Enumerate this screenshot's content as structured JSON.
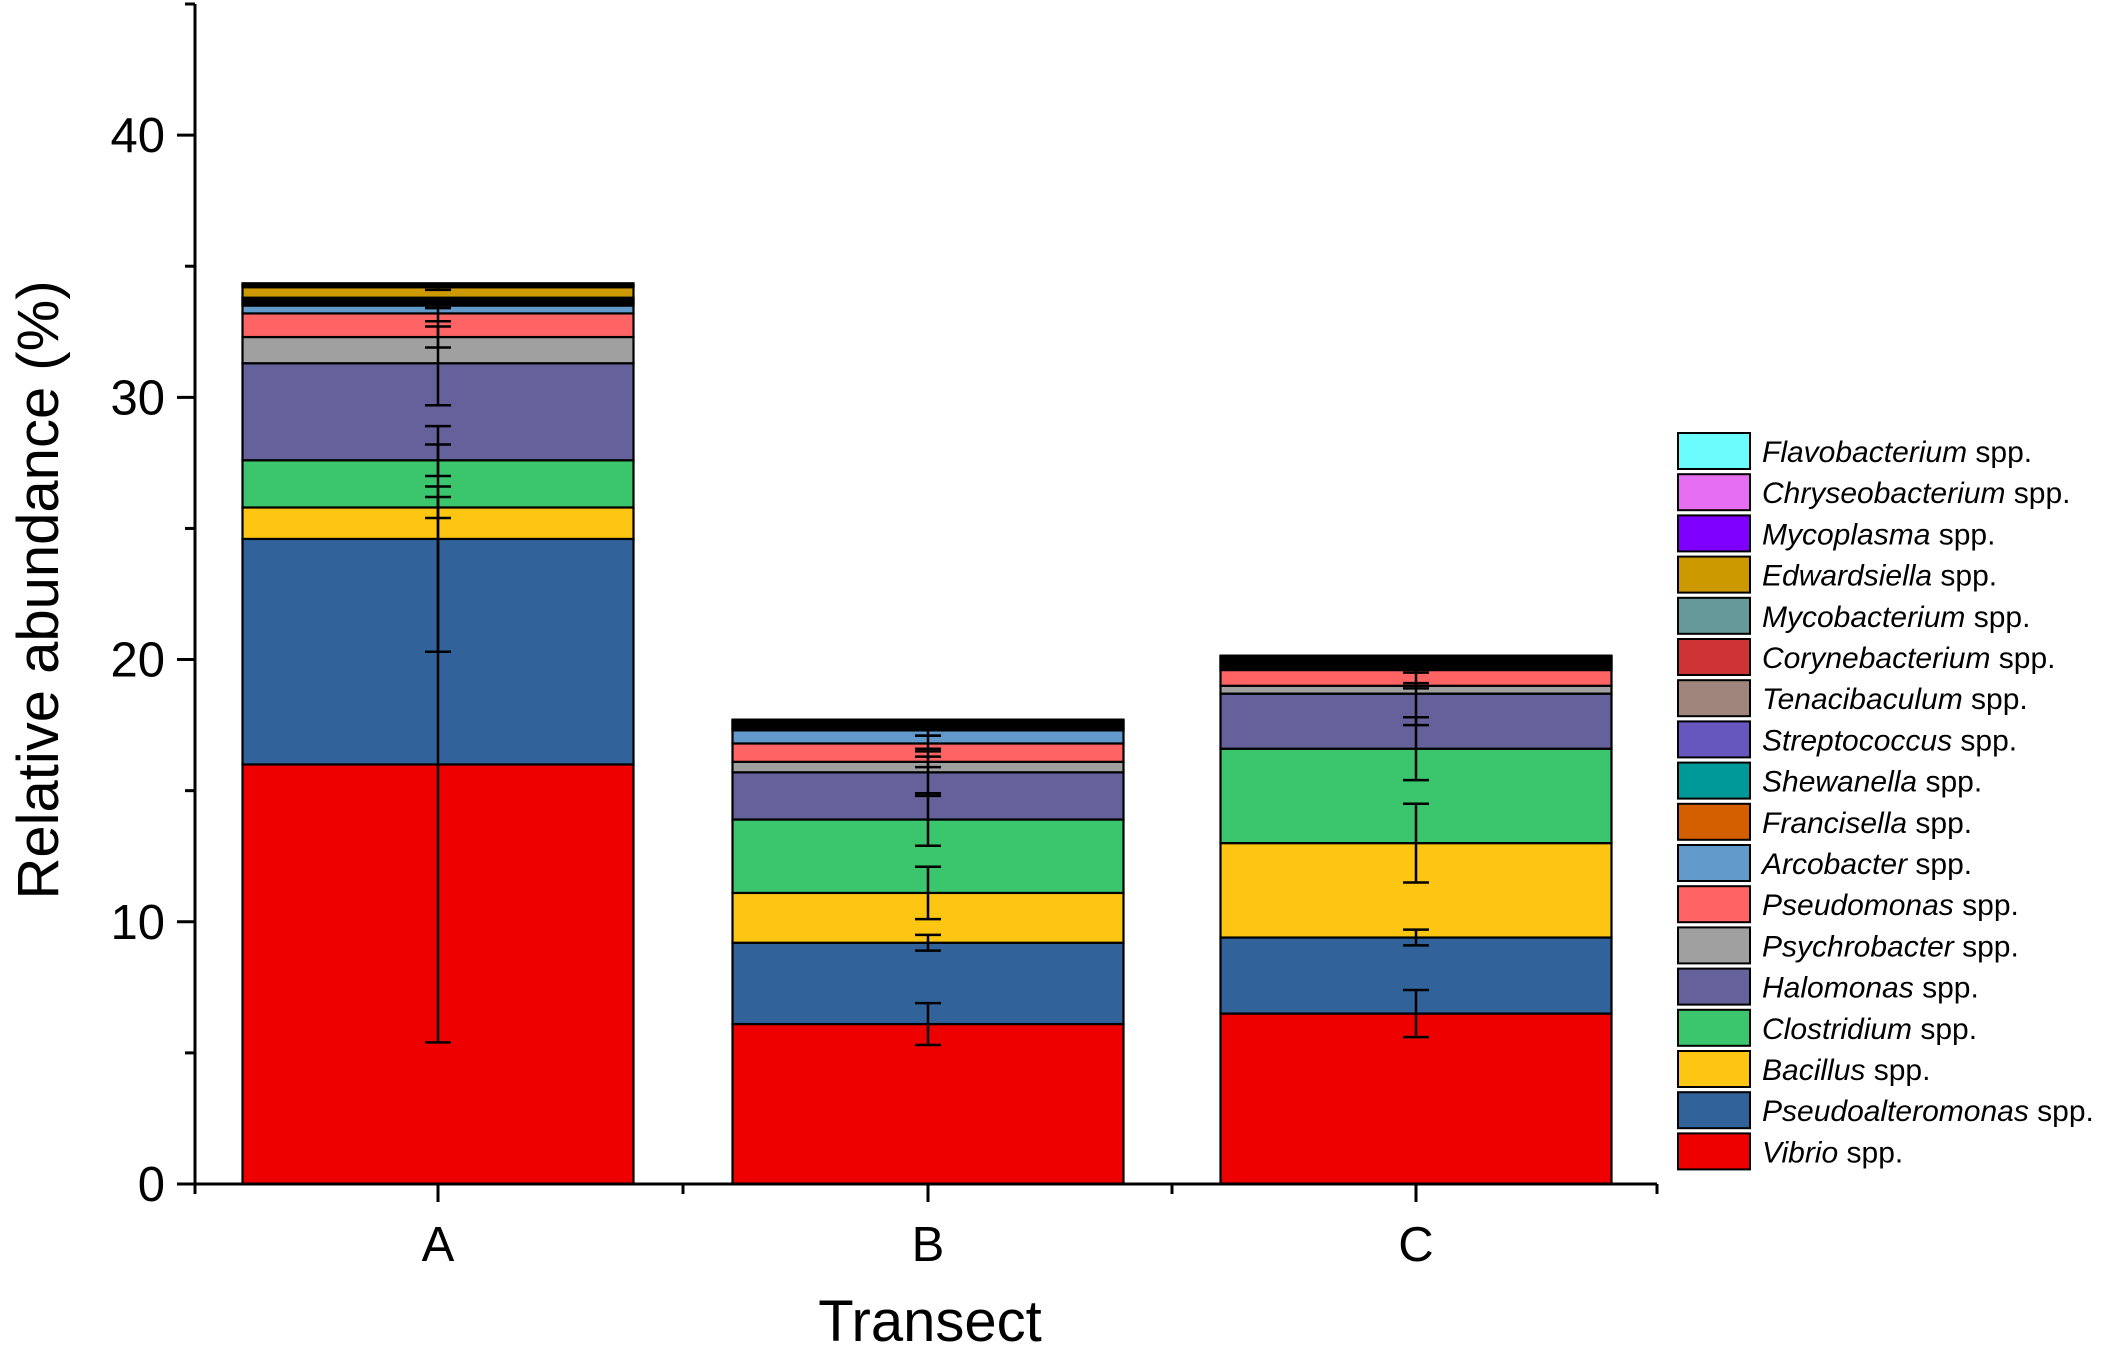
{
  "chart_data": {
    "type": "bar",
    "stacked": true,
    "xlabel": "Transect",
    "ylabel": "Relative abundance (%)",
    "ylim": [
      0,
      45
    ],
    "yticks": [
      0,
      10,
      20,
      30,
      40
    ],
    "categories": [
      "A",
      "B",
      "C"
    ],
    "grid": false,
    "legend_position": "right",
    "series": [
      {
        "name": "Vibrio",
        "suffix": " spp.",
        "color": "#ee0000",
        "values": [
          16.0,
          6.1,
          6.5
        ],
        "errors": [
          10.6,
          0.8,
          0.9
        ]
      },
      {
        "name": "Pseudoalteromonas",
        "suffix": " spp.",
        "color": "#32629a",
        "values": [
          8.6,
          3.1,
          2.9
        ],
        "errors": [
          4.3,
          0.3,
          0.3
        ]
      },
      {
        "name": "Bacillus",
        "suffix": " spp.",
        "color": "#fcc612",
        "values": [
          1.2,
          1.9,
          3.6
        ],
        "errors": [
          0.4,
          1.0,
          1.5
        ]
      },
      {
        "name": "Clostridium",
        "suffix": " spp.",
        "color": "#3bc56d",
        "values": [
          1.8,
          2.8,
          3.6
        ],
        "errors": [
          0.6,
          1.0,
          1.2
        ]
      },
      {
        "name": "Halomonas",
        "suffix": " spp.",
        "color": "#65619b",
        "values": [
          3.7,
          1.8,
          2.1
        ],
        "errors": [
          1.6,
          0.9,
          1.2
        ]
      },
      {
        "name": "Psychrobacter",
        "suffix": " spp.",
        "color": "#a0a0a0",
        "values": [
          1.0,
          0.4,
          0.3
        ],
        "errors": [
          0.4,
          0.2,
          0.1
        ]
      },
      {
        "name": "Pseudomonas",
        "suffix": " spp.",
        "color": "#ff6464",
        "values": [
          0.9,
          0.7,
          0.6
        ],
        "errors": [
          0.3,
          0.3,
          0.1
        ]
      },
      {
        "name": "Arcobacter",
        "suffix": " spp.",
        "color": "#619acb",
        "values": [
          0.3,
          0.5,
          0.05
        ],
        "errors": [
          0.1,
          0.2,
          0.02
        ]
      },
      {
        "name": "Francisella",
        "suffix": " spp.",
        "color": "#d45f00",
        "values": [
          0.05,
          0.04,
          0.05
        ],
        "errors": [
          0.02,
          0.02,
          0.02
        ]
      },
      {
        "name": "Shewanella",
        "suffix": " spp.",
        "color": "#00999a",
        "values": [
          0.05,
          0.04,
          0.05
        ],
        "errors": [
          0.02,
          0.02,
          0.02
        ]
      },
      {
        "name": "Streptococcus",
        "suffix": " spp.",
        "color": "#6657be",
        "values": [
          0.05,
          0.04,
          0.05
        ],
        "errors": [
          0.02,
          0.02,
          0.02
        ]
      },
      {
        "name": "Tenacibaculum",
        "suffix": " spp.",
        "color": "#9f857b",
        "values": [
          0.05,
          0.04,
          0.05
        ],
        "errors": [
          0.02,
          0.02,
          0.02
        ]
      },
      {
        "name": "Corynebacterium",
        "suffix": " spp.",
        "color": "#ce3436",
        "values": [
          0.05,
          0.04,
          0.05
        ],
        "errors": [
          0.02,
          0.02,
          0.02
        ]
      },
      {
        "name": "Mycobacterium",
        "suffix": " spp.",
        "color": "#669999",
        "values": [
          0.05,
          0.04,
          0.05
        ],
        "errors": [
          0.02,
          0.02,
          0.02
        ]
      },
      {
        "name": "Edwardsiella",
        "suffix": " spp.",
        "color": "#cc9900",
        "values": [
          0.4,
          0.05,
          0.05
        ],
        "errors": [
          0.1,
          0.02,
          0.02
        ]
      },
      {
        "name": "Mycoplasma",
        "suffix": " spp.",
        "color": "#8000ff",
        "values": [
          0.05,
          0.04,
          0.05
        ],
        "errors": [
          0.02,
          0.02,
          0.02
        ]
      },
      {
        "name": "Chryseobacterium",
        "suffix": " spp.",
        "color": "#e56ef2",
        "values": [
          0.05,
          0.04,
          0.05
        ],
        "errors": [
          0.02,
          0.02,
          0.02
        ]
      },
      {
        "name": "Flavobacterium",
        "suffix": " spp.",
        "color": "#6bfdfd",
        "values": [
          0.05,
          0.04,
          0.05
        ],
        "errors": [
          0.02,
          0.02,
          0.02
        ]
      }
    ]
  }
}
